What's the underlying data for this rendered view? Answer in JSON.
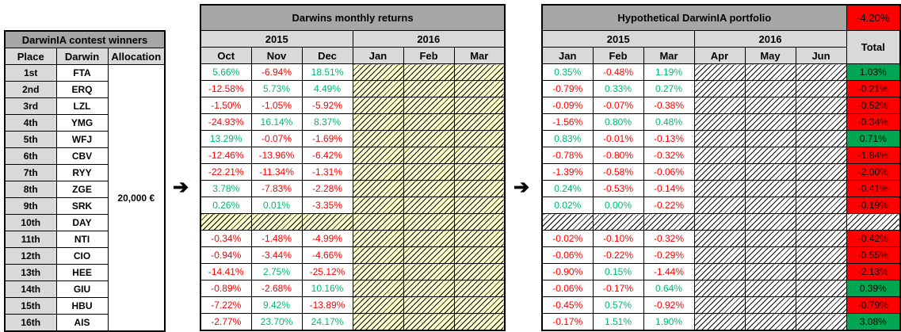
{
  "colors": {
    "header_dark": "#A6A6A6",
    "header_light": "#D9D9D9",
    "positive_text": "#00B873",
    "negative_text": "#FF0000",
    "positive_fill": "#00A651",
    "negative_fill": "#FF0000",
    "hatch_yellow_bg": "#FFFFCC",
    "hatch_white_bg": "#FFFFFF"
  },
  "arrow_glyph": "➔",
  "winners_table": {
    "title": "DarwinIA  contest winners",
    "columns": [
      "Place",
      "Darwin",
      "Allocation"
    ],
    "allocation_value": "20,000 €",
    "rows": [
      {
        "place": "1st",
        "darwin": "FTA"
      },
      {
        "place": "2nd",
        "darwin": "ERQ"
      },
      {
        "place": "3rd",
        "darwin": "LZL"
      },
      {
        "place": "4th",
        "darwin": "YMG"
      },
      {
        "place": "5th",
        "darwin": "WFJ"
      },
      {
        "place": "6th",
        "darwin": "CBV"
      },
      {
        "place": "7th",
        "darwin": "RYY"
      },
      {
        "place": "8th",
        "darwin": "ZGE"
      },
      {
        "place": "9th",
        "darwin": "SRK"
      },
      {
        "place": "10th",
        "darwin": "DAY"
      },
      {
        "place": "11th",
        "darwin": "NTI"
      },
      {
        "place": "12th",
        "darwin": "CIO"
      },
      {
        "place": "13th",
        "darwin": "HEE"
      },
      {
        "place": "14th",
        "darwin": "GIU"
      },
      {
        "place": "15th",
        "darwin": "HBU"
      },
      {
        "place": "16th",
        "darwin": "AIS"
      }
    ]
  },
  "returns_table": {
    "title": "Darwins monthly returns",
    "year_groups": [
      {
        "year": "2015",
        "months": [
          "Oct",
          "Nov",
          "Dec"
        ]
      },
      {
        "year": "2016",
        "months": [
          "Jan",
          "Feb",
          "Mar"
        ]
      }
    ],
    "rows": [
      [
        "5.66%",
        "-6.94%",
        "18.51%",
        null,
        null,
        null
      ],
      [
        "-12.58%",
        "5.73%",
        "4.49%",
        null,
        null,
        null
      ],
      [
        "-1.50%",
        "-1.05%",
        "-5.92%",
        null,
        null,
        null
      ],
      [
        "-24.93%",
        "16.14%",
        "8.37%",
        null,
        null,
        null
      ],
      [
        "13.29%",
        "-0.07%",
        "-1.69%",
        null,
        null,
        null
      ],
      [
        "-12.46%",
        "-13.96%",
        "-6.42%",
        null,
        null,
        null
      ],
      [
        "-22.21%",
        "-11.34%",
        "-1.31%",
        null,
        null,
        null
      ],
      [
        "3.78%",
        "-7.83%",
        "-2.28%",
        null,
        null,
        null
      ],
      [
        "0.26%",
        "0.01%",
        "-3.35%",
        null,
        null,
        null
      ],
      [
        null,
        null,
        null,
        null,
        null,
        null
      ],
      [
        "-0.34%",
        "-1.48%",
        "-4.99%",
        null,
        null,
        null
      ],
      [
        "-0.94%",
        "-3.44%",
        "-4.66%",
        null,
        null,
        null
      ],
      [
        "-14.41%",
        "2.75%",
        "-25.12%",
        null,
        null,
        null
      ],
      [
        "-0.89%",
        "-2.68%",
        "10.16%",
        null,
        null,
        null
      ],
      [
        "-7.22%",
        "9.42%",
        "-13.89%",
        null,
        null,
        null
      ],
      [
        "-2.77%",
        "23.70%",
        "24.17%",
        null,
        null,
        null
      ]
    ]
  },
  "portfolio_table": {
    "title": "Hypothetical DarwinIA portfolio",
    "header_total": "-4.20%",
    "total_label": "Total",
    "year_groups": [
      {
        "year": "2015",
        "months": [
          "Jan",
          "Feb",
          "Mar"
        ]
      },
      {
        "year": "2016",
        "months": [
          "Apr",
          "May",
          "Jun"
        ]
      }
    ],
    "rows": [
      {
        "values": [
          "0.35%",
          "-0.48%",
          "1.19%",
          null,
          null,
          null
        ],
        "total": "1.03%"
      },
      {
        "values": [
          "-0.79%",
          "0.33%",
          "0.27%",
          null,
          null,
          null
        ],
        "total": "-0.21%"
      },
      {
        "values": [
          "-0.09%",
          "-0.07%",
          "-0.38%",
          null,
          null,
          null
        ],
        "total": "-0.52%"
      },
      {
        "values": [
          "-1.56%",
          "0.80%",
          "0.48%",
          null,
          null,
          null
        ],
        "total": "-0.34%"
      },
      {
        "values": [
          "0.83%",
          "-0.01%",
          "-0.13%",
          null,
          null,
          null
        ],
        "total": "0.71%"
      },
      {
        "values": [
          "-0.78%",
          "-0.80%",
          "-0.32%",
          null,
          null,
          null
        ],
        "total": "-1.84%"
      },
      {
        "values": [
          "-1.39%",
          "-0.58%",
          "-0.06%",
          null,
          null,
          null
        ],
        "total": "-2.00%"
      },
      {
        "values": [
          "0.24%",
          "-0.53%",
          "-0.14%",
          null,
          null,
          null
        ],
        "total": "-0.41%"
      },
      {
        "values": [
          "0.02%",
          "0.00%",
          "-0.22%",
          null,
          null,
          null
        ],
        "total": "-0.19%"
      },
      {
        "values": [
          null,
          null,
          null,
          null,
          null,
          null
        ],
        "total": null
      },
      {
        "values": [
          "-0.02%",
          "-0.10%",
          "-0.32%",
          null,
          null,
          null
        ],
        "total": "-0.42%"
      },
      {
        "values": [
          "-0.06%",
          "-0.22%",
          "-0.29%",
          null,
          null,
          null
        ],
        "total": "-0.55%"
      },
      {
        "values": [
          "-0.90%",
          "0.15%",
          "-1.44%",
          null,
          null,
          null
        ],
        "total": "-2.13%"
      },
      {
        "values": [
          "-0.06%",
          "-0.17%",
          "0.64%",
          null,
          null,
          null
        ],
        "total": "0.39%"
      },
      {
        "values": [
          "-0.45%",
          "0.57%",
          "-0.92%",
          null,
          null,
          null
        ],
        "total": "-0.79%"
      },
      {
        "values": [
          "-0.17%",
          "1.51%",
          "1.90%",
          null,
          null,
          null
        ],
        "total": "3.08%"
      }
    ]
  }
}
